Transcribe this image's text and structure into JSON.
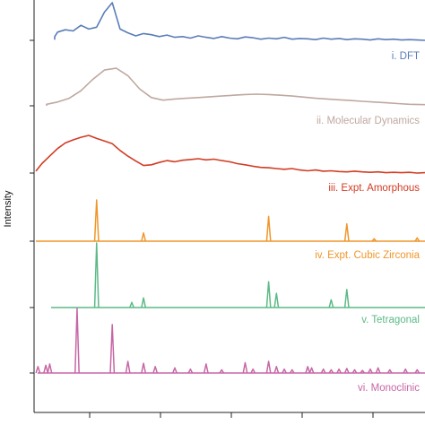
{
  "chart_data": {
    "type": "line",
    "ylabel": "Intensity",
    "xlabel": "",
    "x_tick_labels": [],
    "grid": false,
    "x_range": [
      0,
      100
    ],
    "series": [
      {
        "name": "i. DFT",
        "color": "#5a7db8",
        "x": [
          0,
          2,
          4,
          6,
          8,
          10,
          12,
          14,
          16,
          18,
          20,
          22,
          24,
          26,
          28,
          30,
          32,
          34,
          36,
          38,
          40,
          42,
          44,
          46,
          48,
          50,
          52,
          54,
          56,
          58,
          60,
          62,
          64,
          66,
          68,
          70,
          72,
          74,
          76,
          78,
          80,
          82,
          84,
          86,
          88,
          90,
          92,
          94,
          96,
          98,
          100
        ],
        "y": [
          0.02,
          0.05,
          0.1,
          0.22,
          0.28,
          0.25,
          0.4,
          0.3,
          0.35,
          0.75,
          1.0,
          0.3,
          0.2,
          0.12,
          0.18,
          0.15,
          0.1,
          0.14,
          0.08,
          0.1,
          0.06,
          0.12,
          0.08,
          0.05,
          0.1,
          0.06,
          0.04,
          0.09,
          0.07,
          0.03,
          0.06,
          0.04,
          0.08,
          0.03,
          0.05,
          0.04,
          0.02,
          0.06,
          0.03,
          0.05,
          0.02,
          0.04,
          0.03,
          0.01,
          0.04,
          0.02,
          0.03,
          0.01,
          0.02,
          0.01,
          0.0
        ]
      },
      {
        "name": "ii. Molecular Dynamics",
        "color": "#bfa8a0",
        "x": [
          0,
          3,
          6,
          9,
          12,
          15,
          18,
          21,
          24,
          27,
          30,
          33,
          36,
          39,
          42,
          45,
          48,
          51,
          54,
          57,
          60,
          63,
          66,
          69,
          72,
          75,
          78,
          81,
          84,
          87,
          90,
          93,
          96,
          100
        ],
        "y": [
          0.0,
          0.04,
          0.1,
          0.2,
          0.4,
          0.7,
          0.95,
          1.0,
          0.8,
          0.45,
          0.22,
          0.15,
          0.18,
          0.2,
          0.22,
          0.24,
          0.26,
          0.28,
          0.3,
          0.31,
          0.3,
          0.28,
          0.26,
          0.23,
          0.2,
          0.18,
          0.16,
          0.14,
          0.12,
          0.1,
          0.08,
          0.06,
          0.04,
          0.03
        ]
      },
      {
        "name": "iii. Expt. Amorphous",
        "color": "#d23c24",
        "x": [
          0,
          2,
          4,
          6,
          8,
          10,
          12,
          14,
          16,
          18,
          20,
          22,
          24,
          26,
          28,
          30,
          32,
          34,
          36,
          38,
          40,
          42,
          44,
          46,
          48,
          50,
          52,
          54,
          56,
          58,
          60,
          62,
          64,
          66,
          68,
          70,
          72,
          74,
          76,
          78,
          80,
          82,
          84,
          86,
          88,
          90,
          92,
          94,
          96,
          98,
          100
        ],
        "y": [
          0.05,
          0.25,
          0.45,
          0.65,
          0.8,
          0.88,
          0.95,
          1.0,
          0.92,
          0.85,
          0.78,
          0.6,
          0.45,
          0.32,
          0.2,
          0.22,
          0.28,
          0.33,
          0.3,
          0.34,
          0.36,
          0.38,
          0.35,
          0.37,
          0.33,
          0.3,
          0.25,
          0.22,
          0.18,
          0.15,
          0.14,
          0.12,
          0.1,
          0.12,
          0.08,
          0.06,
          0.08,
          0.05,
          0.06,
          0.04,
          0.03,
          0.05,
          0.03,
          0.02,
          0.03,
          0.01,
          0.02,
          0.01,
          0.02,
          0.0,
          0.01
        ]
      },
      {
        "name": "iv. Expt. Cubic Zirconia",
        "color": "#f0962a",
        "peaks": [
          [
            16,
            1.0
          ],
          [
            28,
            0.2
          ],
          [
            60,
            0.6
          ],
          [
            80,
            0.42
          ],
          [
            87,
            0.06
          ],
          [
            98,
            0.08
          ]
        ]
      },
      {
        "name": "v. Tetragonal",
        "color": "#5cba86",
        "peaks": [
          [
            16,
            1.0
          ],
          [
            25,
            0.08
          ],
          [
            28,
            0.15
          ],
          [
            60,
            0.4
          ],
          [
            62,
            0.22
          ],
          [
            76,
            0.12
          ],
          [
            80,
            0.28
          ]
        ]
      },
      {
        "name": "vi. Monoclinic",
        "color": "#c766a6",
        "peaks": [
          [
            1,
            0.1
          ],
          [
            3,
            0.12
          ],
          [
            4,
            0.14
          ],
          [
            11,
            1.0
          ],
          [
            20,
            0.75
          ],
          [
            24,
            0.18
          ],
          [
            28,
            0.15
          ],
          [
            31,
            0.1
          ],
          [
            36,
            0.08
          ],
          [
            40,
            0.06
          ],
          [
            44,
            0.14
          ],
          [
            48,
            0.05
          ],
          [
            54,
            0.16
          ],
          [
            56,
            0.06
          ],
          [
            60,
            0.18
          ],
          [
            62,
            0.1
          ],
          [
            64,
            0.06
          ],
          [
            66,
            0.05
          ],
          [
            70,
            0.1
          ],
          [
            71,
            0.08
          ],
          [
            74,
            0.06
          ],
          [
            76,
            0.05
          ],
          [
            78,
            0.06
          ],
          [
            80,
            0.07
          ],
          [
            82,
            0.05
          ],
          [
            84,
            0.04
          ],
          [
            86,
            0.06
          ],
          [
            88,
            0.08
          ],
          [
            91,
            0.05
          ],
          [
            95,
            0.06
          ],
          [
            98,
            0.05
          ]
        ]
      }
    ]
  }
}
